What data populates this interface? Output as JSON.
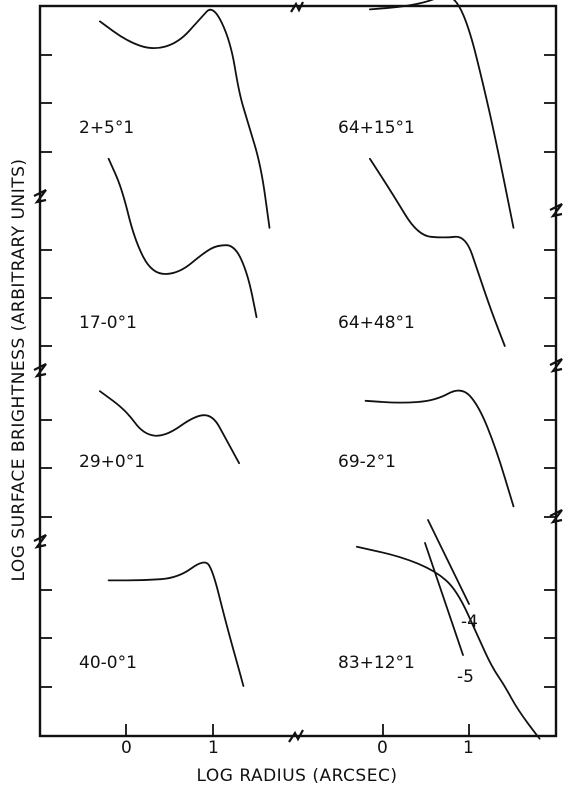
{
  "chart_data": {
    "type": "line",
    "xlabel": "LOG RADIUS (ARCSEC)",
    "ylabel": "LOG SURFACE BRIGHTNESS (ARBITRARY UNITS)",
    "x_ticks_left": [
      "0",
      "1"
    ],
    "x_ticks_right": [
      "0",
      "1"
    ],
    "panels": [
      {
        "name": "2+5°1",
        "column": "left",
        "row": 0,
        "x": [
          -0.3,
          0.0,
          0.3,
          0.6,
          0.85,
          1.0,
          1.2,
          1.3,
          1.4,
          1.55,
          1.65
        ],
        "y": [
          0.7,
          0.3,
          0.1,
          0.25,
          0.75,
          1.05,
          0.3,
          -0.8,
          -1.4,
          -2.3,
          -3.6
        ]
      },
      {
        "name": "64+15°1",
        "column": "right",
        "row": 0,
        "x": [
          -0.15,
          0.2,
          0.5,
          0.7,
          0.85,
          1.0,
          1.15,
          1.3,
          1.5
        ],
        "y": [
          0.95,
          1.0,
          1.1,
          1.25,
          1.15,
          0.5,
          -0.6,
          -1.8,
          -3.6
        ]
      },
      {
        "name": "17-0°1",
        "column": "left",
        "row": 1,
        "x": [
          -0.2,
          -0.05,
          0.1,
          0.3,
          0.6,
          0.9,
          1.05,
          1.25,
          1.4,
          1.5
        ],
        "y": [
          1.9,
          1.3,
          0.2,
          -0.5,
          -0.5,
          -0.05,
          0.1,
          0.1,
          -0.5,
          -1.4
        ]
      },
      {
        "name": "64+48°1",
        "column": "right",
        "row": 1,
        "x": [
          -0.15,
          0.1,
          0.4,
          0.7,
          0.95,
          1.1,
          1.25,
          1.4
        ],
        "y": [
          1.9,
          1.2,
          0.3,
          0.25,
          0.3,
          -0.5,
          -1.3,
          -2.0
        ]
      },
      {
        "name": "29+0°1",
        "column": "left",
        "row": 2,
        "x": [
          -0.3,
          0.0,
          0.2,
          0.45,
          0.8,
          1.0,
          1.15,
          1.3
        ],
        "y": [
          0.6,
          0.2,
          -0.3,
          -0.35,
          0.1,
          0.1,
          -0.4,
          -0.9
        ]
      },
      {
        "name": "69-2°1",
        "column": "right",
        "row": 2,
        "x": [
          -0.2,
          0.2,
          0.6,
          0.9,
          1.1,
          1.3,
          1.5
        ],
        "y": [
          0.4,
          0.35,
          0.4,
          0.7,
          0.3,
          -0.6,
          -1.8
        ]
      },
      {
        "name": "40-0°1",
        "column": "left",
        "row": 3,
        "x": [
          -0.2,
          0.2,
          0.6,
          0.9,
          1.0,
          1.15,
          1.35
        ],
        "y": [
          0.2,
          0.2,
          0.25,
          0.65,
          0.4,
          -0.7,
          -2.0
        ]
      },
      {
        "name": "83+12°1",
        "column": "right",
        "row": 3,
        "x": [
          -0.3,
          0.2,
          0.6,
          0.85,
          1.1,
          1.25,
          1.4,
          1.55,
          1.8
        ],
        "y": [
          0.9,
          0.7,
          0.4,
          0.0,
          -1.0,
          -1.6,
          -2.0,
          -2.5,
          -3.1
        ]
      }
    ],
    "reference_slopes": [
      {
        "label": "-4"
      },
      {
        "label": "-5"
      }
    ],
    "grid": false,
    "legend": "none"
  }
}
